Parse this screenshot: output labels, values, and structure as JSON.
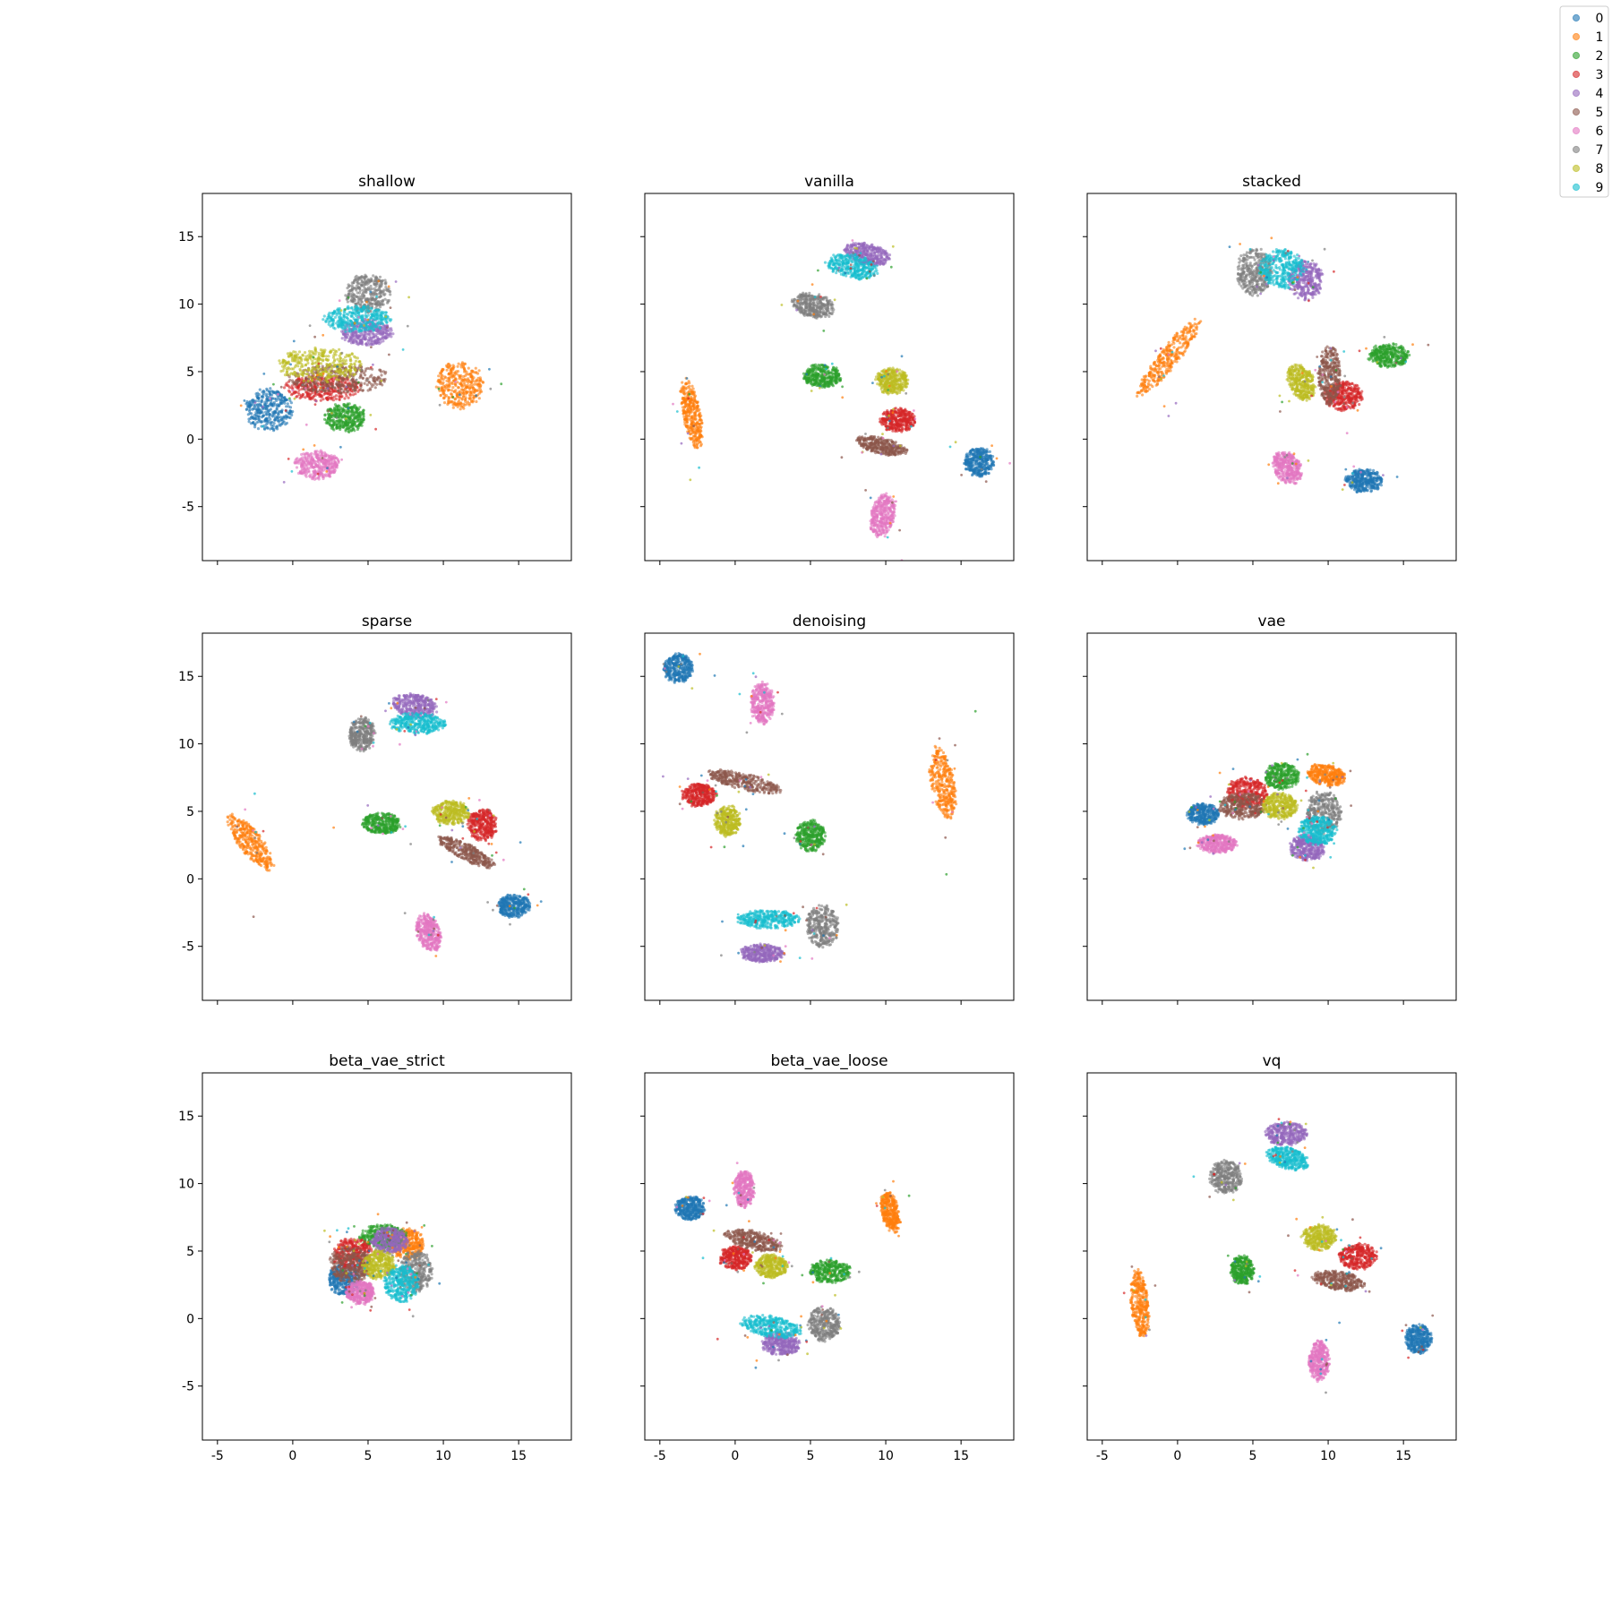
{
  "colors": [
    "#1f77b4",
    "#ff7f0e",
    "#2ca02c",
    "#d62728",
    "#9467bd",
    "#8c564b",
    "#e377c2",
    "#7f7f7f",
    "#bcbd22",
    "#17becf"
  ],
  "chart_data": {
    "type": "scatter",
    "xlim": [
      -6,
      18.5
    ],
    "ylim": [
      -9,
      18.2
    ],
    "x_ticks": [
      -5,
      0,
      5,
      10,
      15
    ],
    "y_ticks": [
      -5,
      0,
      5,
      10,
      15
    ],
    "legend": {
      "placement": "top-right",
      "labels": [
        "0",
        "1",
        "2",
        "3",
        "4",
        "5",
        "6",
        "7",
        "8",
        "9"
      ]
    },
    "panels": [
      {
        "title": "shallow",
        "clusters": [
          {
            "label": "0",
            "cx": -1.6,
            "cy": 2.2,
            "rx": 1.6,
            "ry": 1.6,
            "rot": 0
          },
          {
            "label": "1",
            "cx": 11.1,
            "cy": 4.0,
            "rx": 1.6,
            "ry": 1.8,
            "rot": 0
          },
          {
            "label": "2",
            "cx": 3.5,
            "cy": 1.6,
            "rx": 1.4,
            "ry": 1.1,
            "rot": 0
          },
          {
            "label": "3",
            "cx": 2.0,
            "cy": 3.8,
            "rx": 2.6,
            "ry": 1.0,
            "rot": 0
          },
          {
            "label": "4",
            "cx": 4.9,
            "cy": 7.9,
            "rx": 1.8,
            "ry": 1.0,
            "rot": 0
          },
          {
            "label": "5",
            "cx": 3.0,
            "cy": 4.5,
            "rx": 3.5,
            "ry": 1.1,
            "rot": 0
          },
          {
            "label": "6",
            "cx": 1.6,
            "cy": -1.9,
            "rx": 1.5,
            "ry": 1.1,
            "rot": 0
          },
          {
            "label": "7",
            "cx": 5.0,
            "cy": 10.8,
            "rx": 1.5,
            "ry": 1.5,
            "rot": 0
          },
          {
            "label": "8",
            "cx": 1.8,
            "cy": 5.5,
            "rx": 2.8,
            "ry": 1.3,
            "rot": 0
          },
          {
            "label": "9",
            "cx": 4.3,
            "cy": 8.9,
            "rx": 2.3,
            "ry": 1.0,
            "rot": 0
          }
        ]
      },
      {
        "title": "vanilla",
        "clusters": [
          {
            "label": "0",
            "cx": 16.2,
            "cy": -1.7,
            "rx": 1.0,
            "ry": 1.1,
            "rot": 0
          },
          {
            "label": "1",
            "cx": -2.9,
            "cy": 1.9,
            "rx": 0.6,
            "ry": 2.7,
            "rot": 10
          },
          {
            "label": "2",
            "cx": 5.8,
            "cy": 4.7,
            "rx": 1.3,
            "ry": 0.9,
            "rot": 0
          },
          {
            "label": "3",
            "cx": 10.8,
            "cy": 1.4,
            "rx": 1.2,
            "ry": 0.9,
            "rot": 0
          },
          {
            "label": "4",
            "cx": 8.8,
            "cy": 13.7,
            "rx": 1.6,
            "ry": 0.8,
            "rot": -15
          },
          {
            "label": "5",
            "cx": 9.7,
            "cy": -0.5,
            "rx": 1.8,
            "ry": 0.6,
            "rot": -15
          },
          {
            "label": "6",
            "cx": 9.8,
            "cy": -5.7,
            "rx": 0.8,
            "ry": 1.7,
            "rot": -10
          },
          {
            "label": "7",
            "cx": 5.2,
            "cy": 9.9,
            "rx": 1.5,
            "ry": 0.9,
            "rot": -15
          },
          {
            "label": "8",
            "cx": 10.4,
            "cy": 4.3,
            "rx": 1.1,
            "ry": 1.0,
            "rot": 0
          },
          {
            "label": "9",
            "cx": 7.8,
            "cy": 12.8,
            "rx": 1.9,
            "ry": 0.9,
            "rot": -15
          }
        ]
      },
      {
        "title": "stacked",
        "clusters": [
          {
            "label": "0",
            "cx": 12.4,
            "cy": -3.1,
            "rx": 1.3,
            "ry": 0.9,
            "rot": 0
          },
          {
            "label": "1",
            "cx": -0.6,
            "cy": 6.0,
            "rx": 0.7,
            "ry": 3.6,
            "rot": -35
          },
          {
            "label": "2",
            "cx": 14.0,
            "cy": 6.2,
            "rx": 1.4,
            "ry": 0.9,
            "rot": 0
          },
          {
            "label": "3",
            "cx": 11.0,
            "cy": 3.2,
            "rx": 1.3,
            "ry": 1.1,
            "rot": 0
          },
          {
            "label": "4",
            "cx": 8.5,
            "cy": 11.8,
            "rx": 1.2,
            "ry": 1.5,
            "rot": 0
          },
          {
            "label": "5",
            "cx": 10.1,
            "cy": 4.7,
            "rx": 0.8,
            "ry": 2.2,
            "rot": 0
          },
          {
            "label": "6",
            "cx": 7.3,
            "cy": -2.1,
            "rx": 0.9,
            "ry": 1.3,
            "rot": 25
          },
          {
            "label": "7",
            "cx": 5.1,
            "cy": 12.4,
            "rx": 1.2,
            "ry": 1.8,
            "rot": 0
          },
          {
            "label": "8",
            "cx": 8.2,
            "cy": 4.2,
            "rx": 0.9,
            "ry": 1.4,
            "rot": 20
          },
          {
            "label": "9",
            "cx": 6.9,
            "cy": 12.6,
            "rx": 1.5,
            "ry": 1.5,
            "rot": 0
          }
        ]
      },
      {
        "title": "sparse",
        "clusters": [
          {
            "label": "0",
            "cx": 14.7,
            "cy": -2.0,
            "rx": 1.1,
            "ry": 0.9,
            "rot": 0
          },
          {
            "label": "1",
            "cx": -2.8,
            "cy": 2.7,
            "rx": 0.8,
            "ry": 2.5,
            "rot": 35
          },
          {
            "label": "2",
            "cx": 5.9,
            "cy": 4.1,
            "rx": 1.3,
            "ry": 0.8,
            "rot": 0
          },
          {
            "label": "3",
            "cx": 12.6,
            "cy": 4.0,
            "rx": 1.0,
            "ry": 1.2,
            "rot": 0
          },
          {
            "label": "4",
            "cx": 8.1,
            "cy": 12.8,
            "rx": 1.6,
            "ry": 0.9,
            "rot": -10
          },
          {
            "label": "5",
            "cx": 11.5,
            "cy": 2.0,
            "rx": 2.2,
            "ry": 0.6,
            "rot": -30
          },
          {
            "label": "6",
            "cx": 9.0,
            "cy": -4.0,
            "rx": 0.8,
            "ry": 1.5,
            "rot": 15
          },
          {
            "label": "7",
            "cx": 4.6,
            "cy": 10.7,
            "rx": 0.9,
            "ry": 1.3,
            "rot": 0
          },
          {
            "label": "8",
            "cx": 10.5,
            "cy": 4.9,
            "rx": 1.3,
            "ry": 0.9,
            "rot": 0
          },
          {
            "label": "9",
            "cx": 8.3,
            "cy": 11.5,
            "rx": 1.9,
            "ry": 0.8,
            "rot": 0
          }
        ]
      },
      {
        "title": "denoising",
        "clusters": [
          {
            "label": "0",
            "cx": -3.8,
            "cy": 15.6,
            "rx": 1.0,
            "ry": 1.1,
            "rot": 0
          },
          {
            "label": "1",
            "cx": 13.8,
            "cy": 7.1,
            "rx": 0.8,
            "ry": 2.8,
            "rot": 10
          },
          {
            "label": "2",
            "cx": 5.0,
            "cy": 3.2,
            "rx": 1.0,
            "ry": 1.2,
            "rot": 0
          },
          {
            "label": "3",
            "cx": -2.4,
            "cy": 6.2,
            "rx": 1.2,
            "ry": 0.9,
            "rot": 0
          },
          {
            "label": "4",
            "cx": 1.8,
            "cy": -5.5,
            "rx": 1.5,
            "ry": 0.7,
            "rot": 0
          },
          {
            "label": "5",
            "cx": 0.6,
            "cy": 7.2,
            "rx": 2.6,
            "ry": 0.6,
            "rot": -15
          },
          {
            "label": "6",
            "cx": 1.8,
            "cy": 13.0,
            "rx": 0.8,
            "ry": 1.6,
            "rot": 0
          },
          {
            "label": "7",
            "cx": 5.8,
            "cy": -3.5,
            "rx": 1.1,
            "ry": 1.6,
            "rot": 0
          },
          {
            "label": "8",
            "cx": -0.5,
            "cy": 4.3,
            "rx": 0.9,
            "ry": 1.2,
            "rot": 0
          },
          {
            "label": "9",
            "cx": 2.2,
            "cy": -3.0,
            "rx": 2.1,
            "ry": 0.7,
            "rot": 0
          }
        ]
      },
      {
        "title": "vae",
        "clusters": [
          {
            "label": "0",
            "cx": 1.7,
            "cy": 4.8,
            "rx": 1.1,
            "ry": 0.8,
            "rot": 0
          },
          {
            "label": "1",
            "cx": 9.9,
            "cy": 7.7,
            "rx": 1.3,
            "ry": 0.8,
            "rot": -15
          },
          {
            "label": "2",
            "cx": 6.9,
            "cy": 7.6,
            "rx": 1.2,
            "ry": 1.0,
            "rot": 0
          },
          {
            "label": "3",
            "cx": 4.6,
            "cy": 6.4,
            "rx": 1.4,
            "ry": 1.2,
            "rot": 0
          },
          {
            "label": "4",
            "cx": 8.6,
            "cy": 2.3,
            "rx": 1.2,
            "ry": 1.0,
            "rot": 0
          },
          {
            "label": "5",
            "cx": 4.3,
            "cy": 5.4,
            "rx": 1.6,
            "ry": 1.0,
            "rot": 0
          },
          {
            "label": "6",
            "cx": 2.6,
            "cy": 2.6,
            "rx": 1.4,
            "ry": 0.7,
            "rot": 0
          },
          {
            "label": "7",
            "cx": 9.7,
            "cy": 4.9,
            "rx": 1.2,
            "ry": 1.6,
            "rot": 0
          },
          {
            "label": "8",
            "cx": 6.8,
            "cy": 5.4,
            "rx": 1.2,
            "ry": 1.0,
            "rot": 0
          },
          {
            "label": "9",
            "cx": 9.3,
            "cy": 3.6,
            "rx": 1.3,
            "ry": 1.1,
            "rot": 0
          }
        ]
      },
      {
        "title": "beta_vae_strict",
        "clusters": [
          {
            "label": "0",
            "cx": 3.4,
            "cy": 2.9,
            "rx": 1.1,
            "ry": 1.2,
            "rot": 0
          },
          {
            "label": "1",
            "cx": 7.6,
            "cy": 5.5,
            "rx": 1.2,
            "ry": 1.2,
            "rot": 0
          },
          {
            "label": "2",
            "cx": 6.0,
            "cy": 6.1,
            "rx": 1.6,
            "ry": 0.9,
            "rot": 0
          },
          {
            "label": "3",
            "cx": 4.0,
            "cy": 4.8,
            "rx": 1.3,
            "ry": 1.2,
            "rot": 0
          },
          {
            "label": "4",
            "cx": 6.4,
            "cy": 5.8,
            "rx": 1.3,
            "ry": 1.0,
            "rot": 0
          },
          {
            "label": "5",
            "cx": 3.8,
            "cy": 4.0,
            "rx": 1.4,
            "ry": 1.4,
            "rot": 0
          },
          {
            "label": "6",
            "cx": 4.5,
            "cy": 1.9,
            "rx": 1.0,
            "ry": 0.9,
            "rot": 0
          },
          {
            "label": "7",
            "cx": 8.2,
            "cy": 3.5,
            "rx": 1.1,
            "ry": 1.6,
            "rot": 0
          },
          {
            "label": "8",
            "cx": 5.7,
            "cy": 4.0,
            "rx": 1.1,
            "ry": 1.1,
            "rot": 0
          },
          {
            "label": "9",
            "cx": 7.2,
            "cy": 2.6,
            "rx": 1.2,
            "ry": 1.4,
            "rot": 0
          }
        ]
      },
      {
        "title": "beta_vae_loose",
        "clusters": [
          {
            "label": "0",
            "cx": -3.0,
            "cy": 8.2,
            "rx": 1.0,
            "ry": 0.9,
            "rot": 0
          },
          {
            "label": "1",
            "cx": 10.3,
            "cy": 7.9,
            "rx": 0.6,
            "ry": 1.6,
            "rot": 10
          },
          {
            "label": "2",
            "cx": 6.3,
            "cy": 3.5,
            "rx": 1.4,
            "ry": 0.9,
            "rot": 0
          },
          {
            "label": "3",
            "cx": 0.0,
            "cy": 4.5,
            "rx": 1.1,
            "ry": 0.9,
            "rot": 0
          },
          {
            "label": "4",
            "cx": 3.0,
            "cy": -1.9,
            "rx": 1.3,
            "ry": 0.9,
            "rot": 0
          },
          {
            "label": "5",
            "cx": 1.2,
            "cy": 5.8,
            "rx": 2.0,
            "ry": 0.7,
            "rot": -15
          },
          {
            "label": "6",
            "cx": 0.6,
            "cy": 9.6,
            "rx": 0.7,
            "ry": 1.4,
            "rot": 0
          },
          {
            "label": "7",
            "cx": 5.9,
            "cy": -0.4,
            "rx": 1.1,
            "ry": 1.3,
            "rot": 0
          },
          {
            "label": "8",
            "cx": 2.4,
            "cy": 3.9,
            "rx": 1.1,
            "ry": 0.9,
            "rot": 0
          },
          {
            "label": "9",
            "cx": 2.4,
            "cy": -0.6,
            "rx": 2.1,
            "ry": 0.8,
            "rot": -10
          }
        ]
      },
      {
        "title": "vq",
        "clusters": [
          {
            "label": "0",
            "cx": 16.0,
            "cy": -1.5,
            "rx": 0.9,
            "ry": 1.1,
            "rot": 0
          },
          {
            "label": "1",
            "cx": -2.5,
            "cy": 1.1,
            "rx": 0.6,
            "ry": 2.6,
            "rot": 5
          },
          {
            "label": "2",
            "cx": 4.3,
            "cy": 3.6,
            "rx": 0.8,
            "ry": 1.1,
            "rot": 0
          },
          {
            "label": "3",
            "cx": 12.0,
            "cy": 4.6,
            "rx": 1.3,
            "ry": 1.0,
            "rot": 0
          },
          {
            "label": "4",
            "cx": 7.2,
            "cy": 13.7,
            "rx": 1.4,
            "ry": 0.9,
            "rot": 0
          },
          {
            "label": "5",
            "cx": 10.7,
            "cy": 2.8,
            "rx": 1.8,
            "ry": 0.7,
            "rot": -10
          },
          {
            "label": "6",
            "cx": 9.4,
            "cy": -3.1,
            "rx": 0.7,
            "ry": 1.6,
            "rot": 0
          },
          {
            "label": "7",
            "cx": 3.2,
            "cy": 10.5,
            "rx": 1.1,
            "ry": 1.3,
            "rot": 0
          },
          {
            "label": "8",
            "cx": 9.4,
            "cy": 6.0,
            "rx": 1.2,
            "ry": 1.0,
            "rot": 0
          },
          {
            "label": "9",
            "cx": 7.3,
            "cy": 11.9,
            "rx": 1.5,
            "ry": 0.8,
            "rot": -20
          }
        ]
      }
    ]
  }
}
